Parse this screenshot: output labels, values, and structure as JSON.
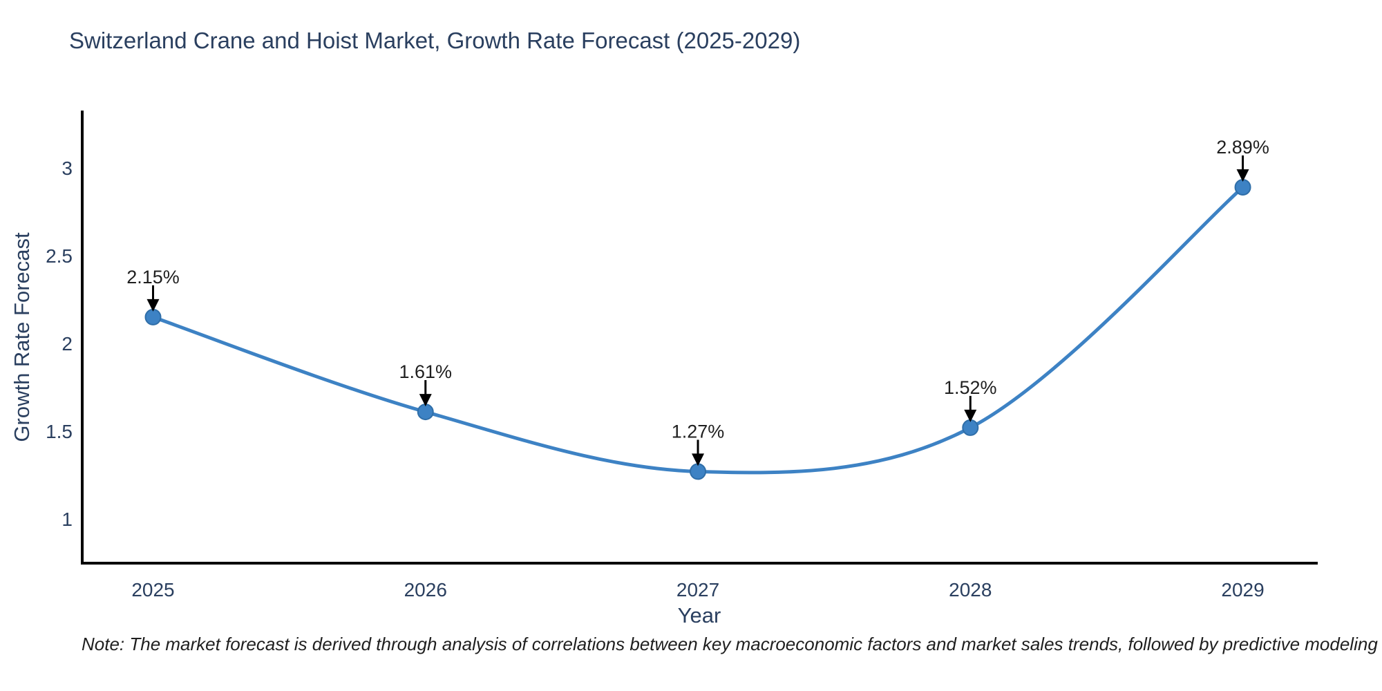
{
  "page": {
    "title": "Switzerland Crane and Hoist Market, Growth Rate Forecast (2025-2029)",
    "note": "Note: The market forecast is derived through analysis of correlations between key macroeconomic factors and market sales trends, followed by predictive modeling to project future sales"
  },
  "colors": {
    "title_text": "#2a3f5f",
    "axis_text": "#2a3f5f",
    "annotation_text": "#1f1f1f",
    "axis_line": "#000000",
    "series_line": "#3d82c4",
    "marker_fill": "#3d82c4",
    "marker_edge": "#2f6ea8",
    "arrow": "#000000",
    "background": "#ffffff"
  },
  "chart_data": {
    "type": "line",
    "title": "Switzerland Crane and Hoist Market, Growth Rate Forecast (2025-2029)",
    "xlabel": "Year",
    "ylabel": "Growth Rate Forecast",
    "x": [
      2025,
      2026,
      2027,
      2028,
      2029
    ],
    "series": [
      {
        "name": "Growth Rate Forecast",
        "values": [
          2.15,
          1.61,
          1.27,
          1.52,
          2.89
        ]
      }
    ],
    "point_labels": [
      "2.15%",
      "1.61%",
      "1.27%",
      "1.52%",
      "2.89%"
    ],
    "xticks": [
      "2025",
      "2026",
      "2027",
      "2028",
      "2029"
    ],
    "yticks": [
      1,
      1.5,
      2,
      2.5,
      3
    ],
    "xlim": [
      2024.74,
      2029.27
    ],
    "ylim": [
      0.748,
      3.319
    ],
    "grid": false,
    "legend": "none",
    "line_shape": "spline",
    "marker": "circle",
    "annotation_arrows": true
  }
}
